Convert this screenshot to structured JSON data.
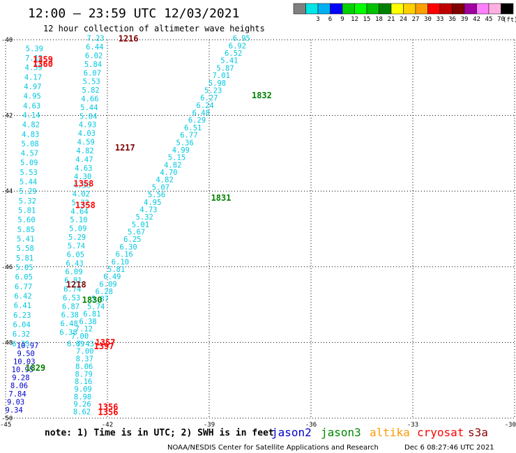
{
  "header": {
    "title": "12:00 – 23:59 UTC 12/03/2021",
    "subtitle": "12 hour collection of altimeter wave heights"
  },
  "legend": {
    "unit": "(ft)",
    "swatches": [
      {
        "color": "#808080",
        "label": ""
      },
      {
        "color": "#00e5e5",
        "label": "3"
      },
      {
        "color": "#00b0f0",
        "label": "6"
      },
      {
        "color": "#0000ff",
        "label": "9"
      },
      {
        "color": "#00d000",
        "label": "12"
      },
      {
        "color": "#00ff00",
        "label": "15"
      },
      {
        "color": "#00c000",
        "label": "18"
      },
      {
        "color": "#008000",
        "label": "21"
      },
      {
        "color": "#ffff00",
        "label": "24"
      },
      {
        "color": "#ffd000",
        "label": "27"
      },
      {
        "color": "#ffa000",
        "label": "30"
      },
      {
        "color": "#ff0000",
        "label": "33"
      },
      {
        "color": "#c00000",
        "label": "36"
      },
      {
        "color": "#800000",
        "label": "39"
      },
      {
        "color": "#a000a0",
        "label": "42"
      },
      {
        "color": "#ff80ff",
        "label": "45"
      },
      {
        "color": "#ffb0e0",
        "label": "70"
      },
      {
        "color": "#000000",
        "label": ""
      }
    ]
  },
  "footer": {
    "note": "note: 1) Time is in UTC; 2) SWH is in feet",
    "satellites": [
      {
        "name": "jason2",
        "color": "#0000cc"
      },
      {
        "name": "jason3",
        "color": "#008800"
      },
      {
        "name": "altika",
        "color": "#ff9900"
      },
      {
        "name": "cryosat",
        "color": "#ff0000"
      },
      {
        "name": "s3a",
        "color": "#880000"
      }
    ],
    "credit": "NOAA/NESDIS Center for Satellite Applications and Research",
    "timestamp": "Dec  6 08:27:46 UTC 2021"
  },
  "chart_data": {
    "type": "scatter",
    "title": "12:00 – 23:59 UTC 12/03/2021",
    "subtitle": "12 hour collection of altimeter wave heights",
    "xlabel": "",
    "ylabel": "",
    "xlim": [
      -45,
      -30
    ],
    "ylim": [
      -50,
      -40
    ],
    "xticks": [
      -45,
      -42,
      -39,
      -36,
      -33,
      -30
    ],
    "yticks": [
      -40,
      -42,
      -44,
      -46,
      -48,
      -50
    ],
    "xtick_labels": [
      "-45",
      "-42",
      "-39",
      "-36",
      "-33",
      "-30"
    ],
    "ytick_labels": [
      "-40",
      "-42",
      "-44",
      "-46",
      "-48",
      "-50"
    ],
    "grid": true,
    "tracks": [
      {
        "color": "#00c8e0",
        "lon_start": -38.05,
        "lat_start": -40.03,
        "lon_end": -42.93,
        "lat_end": -48.1,
        "values": [
          "6.95",
          "6.92",
          "6.52",
          "5.41",
          "5.87",
          "7.01",
          "5.98",
          "5.23",
          "6.27",
          "6.24",
          "6.48",
          "6.29",
          "6.51",
          "6.77",
          "5.36",
          "4.99",
          "5.15",
          "4.82",
          "4.70",
          "4.82",
          "5.07",
          "5.56",
          "4.95",
          "4.73",
          "5.32",
          "5.01",
          "5.67",
          "6.25",
          "6.30",
          "6.16",
          "6.10",
          "5.81",
          "6.49",
          "6.09",
          "6.28",
          "5.87",
          "5.74",
          "6.81",
          "6.38",
          "7.12",
          "7.00",
          "6.69"
        ]
      },
      {
        "color": "#00c8e0",
        "lon_start": -42.35,
        "lat_start": -40.03,
        "lon_end": -43.15,
        "lat_end": -47.8,
        "values": [
          "7.23",
          "6.44",
          "6.02",
          "5.84",
          "6.07",
          "5.53",
          "5.82",
          "4.66",
          "5.44",
          "5.04",
          "4.93",
          "4.03",
          "4.59",
          "4.82",
          "4.47",
          "4.63",
          "4.30",
          "4.36",
          "4.02",
          "5.32",
          "4.64",
          "5.10",
          "5.09",
          "5.29",
          "5.74",
          "6.05",
          "6.43",
          "6.09",
          "6.81",
          "6.74",
          "6.53",
          "6.87",
          "6.38",
          "6.48",
          "6.38"
        ]
      },
      {
        "color": "#00c8e0",
        "lon_start": -44.15,
        "lat_start": -40.3,
        "lon_end": -44.55,
        "lat_end": -48.1,
        "values": [
          "5.39",
          "7.12",
          "4.59",
          "4.17",
          "4.97",
          "4.95",
          "4.63",
          "4.14",
          "4.82",
          "4.83",
          "5.08",
          "4.57",
          "5.09",
          "5.53",
          "5.44",
          "5.29",
          "5.32",
          "5.81",
          "5.60",
          "5.85",
          "5.41",
          "5.58",
          "5.81",
          "5.05",
          "6.05",
          "6.77",
          "6.42",
          "6.41",
          "6.23",
          "6.04",
          "6.32",
          "6.35"
        ]
      },
      {
        "color": "#00c8e0",
        "lon_start": -42.65,
        "lat_start": -48.1,
        "lon_end": -42.75,
        "lat_end": -49.9,
        "values": [
          "7.43",
          "7.00",
          "8.37",
          "8.06",
          "8.79",
          "8.16",
          "9.09",
          "8.98",
          "9.26",
          "8.62"
        ]
      },
      {
        "color": "#0000cc",
        "lon_start": -44.35,
        "lat_start": -48.15,
        "lon_end": -44.75,
        "lat_end": -49.85,
        "values": [
          "10.97",
          "9.50",
          "10.03",
          "10.95",
          "9.28",
          "8.06",
          "7.84",
          "9.03",
          "9.34"
        ]
      }
    ],
    "time_labels": [
      {
        "text": "1216",
        "lon": -41.38,
        "lat": -40.05,
        "color": "#800000"
      },
      {
        "text": "1359",
        "lon": -43.9,
        "lat": -40.6,
        "color": "#ff0000"
      },
      {
        "text": "1360",
        "lon": -43.9,
        "lat": -40.72,
        "color": "#ff0000"
      },
      {
        "text": "1832",
        "lon": -37.45,
        "lat": -41.55,
        "color": "#008000"
      },
      {
        "text": "1217",
        "lon": -41.48,
        "lat": -42.93,
        "color": "#800000"
      },
      {
        "text": "1358",
        "lon": -42.7,
        "lat": -43.88,
        "color": "#ff0000"
      },
      {
        "text": "1831",
        "lon": -38.65,
        "lat": -44.25,
        "color": "#008000"
      },
      {
        "text": "1358",
        "lon": -42.65,
        "lat": -44.45,
        "color": "#ff0000"
      },
      {
        "text": "1218",
        "lon": -42.92,
        "lat": -46.55,
        "color": "#800000"
      },
      {
        "text": "1830",
        "lon": -42.45,
        "lat": -46.95,
        "color": "#008000"
      },
      {
        "text": "1357",
        "lon": -42.06,
        "lat": -48.08,
        "color": "#ff0000"
      },
      {
        "text": "1397",
        "lon": -42.1,
        "lat": -48.18,
        "color": "#ff0000"
      },
      {
        "text": "1829",
        "lon": -44.12,
        "lat": -48.75,
        "color": "#008000"
      },
      {
        "text": "1356",
        "lon": -41.98,
        "lat": -49.78,
        "color": "#ff0000"
      },
      {
        "text": "1356",
        "lon": -41.98,
        "lat": -49.92,
        "color": "#ff0000"
      }
    ]
  }
}
